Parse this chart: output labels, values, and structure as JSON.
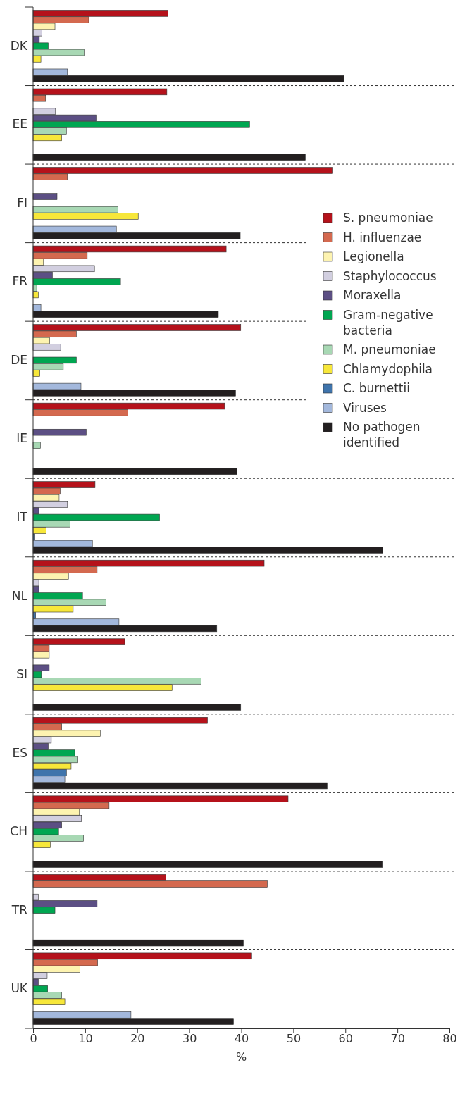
{
  "chart_data": {
    "type": "bar",
    "orientation": "horizontal",
    "xlabel": "%",
    "xlim": [
      0,
      80
    ],
    "xticks": [
      0,
      10,
      20,
      30,
      40,
      50,
      60,
      70,
      80
    ],
    "legend": "right",
    "categories": [
      "DK",
      "EE",
      "FI",
      "FR",
      "DE",
      "IE",
      "IT",
      "NL",
      "SI",
      "ES",
      "CH",
      "TR",
      "UK"
    ],
    "series": [
      {
        "name": "S. pneumoniae",
        "color": "#b5121b",
        "values": [
          25.9,
          25.7,
          57.6,
          37.1,
          39.9,
          36.8,
          11.9,
          44.4,
          17.6,
          33.5,
          49.0,
          25.5,
          42.0
        ]
      },
      {
        "name": "H. influenzae",
        "color": "#d4694f",
        "values": [
          10.7,
          2.4,
          6.6,
          10.4,
          8.3,
          18.2,
          5.2,
          12.3,
          3.1,
          5.5,
          14.6,
          45.0,
          12.4
        ]
      },
      {
        "name": "Legionella",
        "color": "#fdf3b0",
        "values": [
          4.2,
          null,
          null,
          2.0,
          3.2,
          null,
          5.0,
          6.8,
          3.1,
          12.9,
          8.9,
          null,
          9.0
        ]
      },
      {
        "name": "Staphylococcus",
        "color": "#d2cfe0",
        "values": [
          1.7,
          4.3,
          null,
          11.8,
          5.3,
          null,
          6.6,
          1.1,
          null,
          3.5,
          9.3,
          1.0,
          2.7
        ]
      },
      {
        "name": "Moraxella",
        "color": "#5c4f84",
        "values": [
          1.2,
          12.1,
          4.6,
          3.7,
          null,
          10.2,
          1.1,
          1.1,
          3.1,
          2.9,
          5.5,
          12.3,
          1.0
        ]
      },
      {
        "name": "Gram-negative bacteria",
        "color": "#00a651",
        "values": [
          2.9,
          41.6,
          null,
          16.8,
          8.3,
          null,
          24.3,
          9.5,
          1.6,
          8.0,
          4.9,
          4.2,
          2.8
        ]
      },
      {
        "name": "M. pneumoniae",
        "color": "#a8d8b4",
        "values": [
          9.8,
          6.4,
          16.3,
          0.7,
          5.8,
          1.4,
          7.1,
          14.0,
          32.3,
          8.6,
          9.7,
          null,
          5.5
        ]
      },
      {
        "name": "Chlamydophila",
        "color": "#f7e73a",
        "values": [
          1.5,
          5.5,
          20.2,
          1.0,
          1.3,
          null,
          2.5,
          7.7,
          26.7,
          7.3,
          3.3,
          null,
          6.1
        ]
      },
      {
        "name": "C. burnettii",
        "color": "#3f74ac",
        "values": [
          null,
          null,
          null,
          null,
          null,
          null,
          0.2,
          0.5,
          null,
          6.4,
          null,
          null,
          null
        ]
      },
      {
        "name": "Viruses",
        "color": "#a3b8dc",
        "values": [
          6.6,
          null,
          16.0,
          1.5,
          9.2,
          null,
          11.4,
          16.5,
          null,
          6.1,
          null,
          null,
          18.8
        ]
      },
      {
        "name": "No pathogen identified",
        "color": "#231f20",
        "values": [
          59.7,
          52.3,
          39.8,
          35.6,
          38.9,
          39.2,
          67.2,
          35.3,
          39.9,
          56.5,
          67.1,
          40.4,
          38.5
        ]
      }
    ]
  }
}
